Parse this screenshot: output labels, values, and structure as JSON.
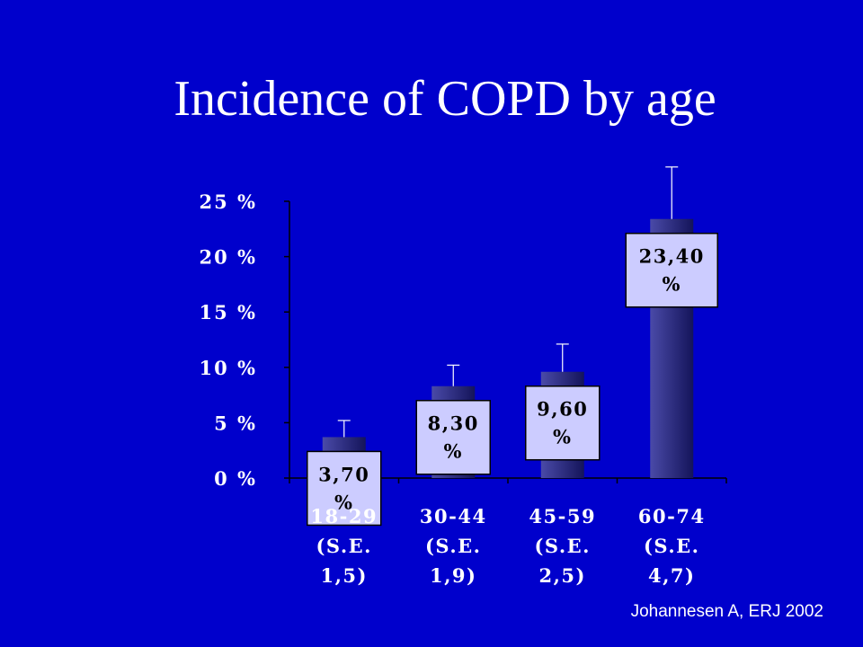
{
  "slide": {
    "title": "Incidence of COPD by age",
    "citation": "Johannesen A, ERJ 2002"
  },
  "colors": {
    "background": "#0000cc",
    "bar_light": "#4a4aa8",
    "bar_dark": "#14145a",
    "label_box": "#ccccff"
  },
  "chart_data": {
    "type": "bar",
    "title": "",
    "categories": [
      [
        "18-29",
        "(S.E.",
        "1,5)"
      ],
      [
        "30-44",
        "(S.E.",
        "1,9)"
      ],
      [
        "45-59",
        "(S.E.",
        "2,5)"
      ],
      [
        "60-74",
        "(S.E.",
        "4,7)"
      ]
    ],
    "values": [
      3.7,
      8.3,
      9.6,
      23.4
    ],
    "std_error": [
      1.5,
      1.9,
      2.5,
      4.7
    ],
    "data_labels": [
      [
        "3,70",
        "%"
      ],
      [
        "8,30",
        "%"
      ],
      [
        "9,60",
        "%"
      ],
      [
        "23,40",
        "%"
      ]
    ],
    "ylim": [
      0,
      25
    ],
    "yticks": [
      {
        "value": 0,
        "label": "0 %"
      },
      {
        "value": 5,
        "label": "5 %"
      },
      {
        "value": 10,
        "label": "10 %"
      },
      {
        "value": 15,
        "label": "15 %"
      },
      {
        "value": 20,
        "label": "20 %"
      },
      {
        "value": 25,
        "label": "25 %"
      }
    ],
    "xlabel": "",
    "ylabel": "",
    "grid": false,
    "legend": "none"
  }
}
